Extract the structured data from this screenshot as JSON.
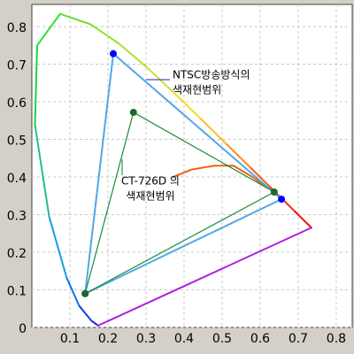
{
  "chart_data": {
    "type": "chromaticity",
    "xlim": [
      0,
      0.842
    ],
    "ylim": [
      0,
      0.859
    ],
    "xticks": [
      0.1,
      0.2,
      0.3,
      0.4,
      0.5,
      0.6,
      0.7,
      0.8
    ],
    "yticks": [
      0,
      0.1,
      0.2,
      0.3,
      0.4,
      0.5,
      0.6,
      0.7,
      0.8
    ],
    "grid": true,
    "locus": {
      "x": [
        0.1741,
        0.1566,
        0.1241,
        0.0913,
        0.0454,
        0.0082,
        0.0139,
        0.0743,
        0.1547,
        0.2296,
        0.3016,
        0.3731,
        0.4441,
        0.5125,
        0.5752,
        0.627,
        0.6915,
        0.7347,
        0.1741
      ],
      "y": [
        0.005,
        0.0177,
        0.0578,
        0.1327,
        0.295,
        0.5384,
        0.7502,
        0.8338,
        0.8059,
        0.7543,
        0.6923,
        0.6245,
        0.5547,
        0.4866,
        0.4242,
        0.3725,
        0.3083,
        0.2653,
        0.005
      ],
      "colors": [
        "#2020e0",
        "#1040f0",
        "#1070f0",
        "#10a0e0",
        "#20c090",
        "#20d040",
        "#30e030",
        "#60e030",
        "#90e030",
        "#b0e030",
        "#d0e030",
        "#f0e020",
        "#f8c020",
        "#f89020",
        "#f06020",
        "#f03020",
        "#f01010",
        "#b020e0"
      ]
    },
    "planckian": {
      "color": "#f06010",
      "x": [
        0.37,
        0.42,
        0.48,
        0.53,
        0.58,
        0.62
      ],
      "y": [
        0.4,
        0.42,
        0.43,
        0.43,
        0.4,
        0.37
      ]
    },
    "series": [
      {
        "name": "NTSC",
        "color": "#50a8e8",
        "dot_color": "#0000ff",
        "x": [
          0.214,
          0.14,
          0.656
        ],
        "y": [
          0.728,
          0.09,
          0.341
        ]
      },
      {
        "name": "CT-726D",
        "color": "#1a8a3a",
        "dot_color": "#1a6a2a",
        "x": [
          0.267,
          0.14,
          0.637
        ],
        "y": [
          0.572,
          0.09,
          0.36
        ]
      }
    ],
    "annotations": [
      {
        "lines": [
          "NTSC방송방식의",
          "색재현범위"
        ],
        "color": "#2020c0"
      },
      {
        "lines": [
          "CT-726D 의",
          "색재현범위"
        ],
        "color": "#1a7a2a"
      }
    ]
  }
}
